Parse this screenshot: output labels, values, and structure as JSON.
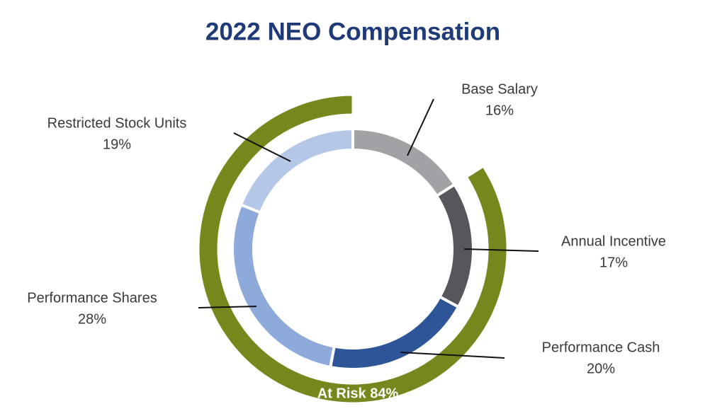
{
  "chart_data": {
    "type": "donut",
    "title": "2022 NEO Compensation",
    "categories": [
      "Base Salary",
      "Annual Incentive",
      "Performance Cash",
      "Performance Shares",
      "Restricted Stock Units"
    ],
    "values": [
      16,
      17,
      20,
      28,
      19
    ],
    "value_labels": [
      "16%",
      "17%",
      "20%",
      "28%",
      "19%"
    ],
    "colors": [
      "#a0a2a5",
      "#55575c",
      "#2e5597",
      "#8eaadb",
      "#b4c7e7"
    ],
    "outer": {
      "value": 84,
      "label": "At Risk 84%",
      "color": "#76881d"
    }
  }
}
